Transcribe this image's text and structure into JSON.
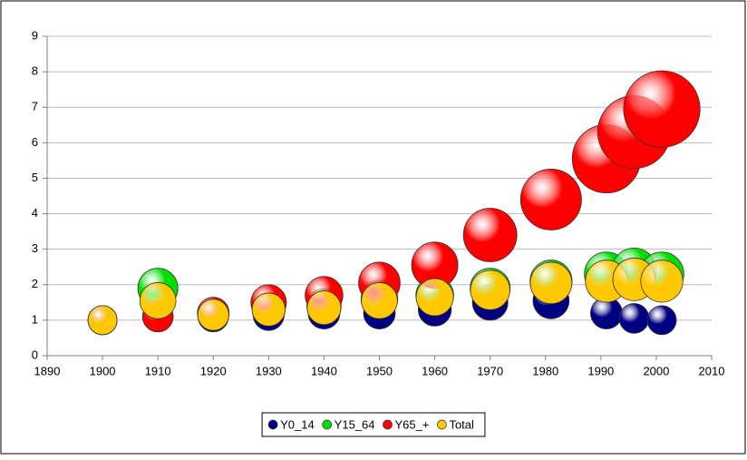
{
  "chart_data": {
    "type": "bubble",
    "x": [
      1900,
      1910,
      1920,
      1930,
      1940,
      1950,
      1960,
      1970,
      1981,
      1991,
      1996,
      2001
    ],
    "series": [
      {
        "name": "Y0_14",
        "color": "#000080",
        "values": [
          1,
          1.1,
          1.1,
          1.15,
          1.2,
          1.2,
          1.3,
          1.5,
          1.55,
          1.2,
          1.05,
          1
        ]
      },
      {
        "name": "Y15_64",
        "color": "#00e000",
        "values": [
          1,
          1.9,
          1.15,
          1.3,
          1.4,
          1.6,
          1.7,
          1.9,
          2.1,
          2.3,
          2.4,
          2.3
        ]
      },
      {
        "name": "Y65_+",
        "color": "#ff0000",
        "values": [
          1,
          1.1,
          1.2,
          1.5,
          1.7,
          2.05,
          2.55,
          3.4,
          4.4,
          5.55,
          6.3,
          6.95
        ]
      },
      {
        "name": "Total",
        "color": "#ffc800",
        "values": [
          1,
          1.55,
          1.15,
          1.3,
          1.35,
          1.55,
          1.65,
          1.85,
          2.05,
          2.1,
          2.15,
          2.1
        ]
      }
    ],
    "xlim": [
      1890,
      2010
    ],
    "xticks": [
      1890,
      1900,
      1910,
      1920,
      1930,
      1940,
      1950,
      1960,
      1970,
      1980,
      1990,
      2000,
      2010
    ],
    "ylim": [
      0,
      9
    ],
    "yticks": [
      0,
      1,
      2,
      3,
      4,
      5,
      6,
      7,
      8,
      9
    ],
    "grid": true,
    "legend": "bottom"
  }
}
